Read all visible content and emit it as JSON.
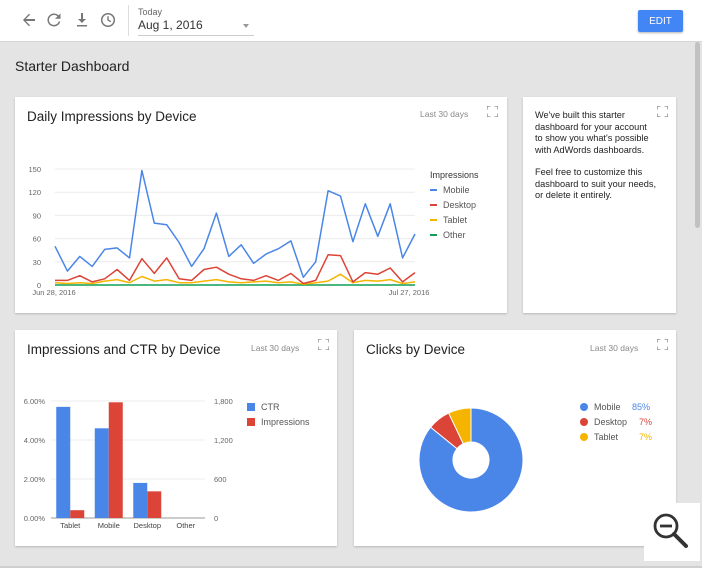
{
  "toolbar": {
    "icons": [
      "back-arrow-icon",
      "refresh-icon",
      "download-icon",
      "history-clock-icon"
    ],
    "date_label": "Today",
    "date_value": "Aug 1, 2016",
    "edit_label": "EDIT"
  },
  "page_title": "Starter Dashboard",
  "colors": {
    "mobile": "#4a86e8",
    "desktop": "#db4437",
    "tablet": "#f4b400",
    "other": "#0f9d58",
    "edit": "#4285f4"
  },
  "cards": {
    "daily": {
      "title": "Daily Impressions by Device",
      "range": "Last 30 days",
      "legend_title": "Impressions",
      "legend": [
        "Mobile",
        "Desktop",
        "Tablet",
        "Other"
      ]
    },
    "welcome": {
      "p1": "We've built this starter dashboard for your account to show you what's possible with AdWords dashboards.",
      "p2": "Feel free to customize this dashboard to suit your needs, or delete it entirely."
    },
    "ctr": {
      "title": "Impressions and CTR by Device",
      "range": "Last 30 days",
      "legend": [
        "CTR",
        "Impressions"
      ]
    },
    "clicks": {
      "title": "Clicks by Device",
      "range": "Last 30 days",
      "legend": [
        {
          "label": "Mobile",
          "pct": "85%"
        },
        {
          "label": "Desktop",
          "pct": "7%"
        },
        {
          "label": "Tablet",
          "pct": "7%"
        }
      ]
    }
  },
  "chart_data": [
    {
      "type": "line",
      "title": "Daily Impressions by Device",
      "ylim": [
        0,
        150
      ],
      "yticks": [
        "0",
        "30",
        "60",
        "90",
        "120",
        "150"
      ],
      "x_tick_labels": [
        "Jun 28, 2016",
        "Jul 27, 2016"
      ],
      "x": [
        "Jun 28",
        "Jun 29",
        "Jun 30",
        "Jul 1",
        "Jul 2",
        "Jul 3",
        "Jul 4",
        "Jul 5",
        "Jul 6",
        "Jul 7",
        "Jul 8",
        "Jul 9",
        "Jul 10",
        "Jul 11",
        "Jul 12",
        "Jul 13",
        "Jul 14",
        "Jul 15",
        "Jul 16",
        "Jul 17",
        "Jul 18",
        "Jul 19",
        "Jul 20",
        "Jul 21",
        "Jul 22",
        "Jul 23",
        "Jul 24",
        "Jul 25",
        "Jul 26",
        "Jul 27"
      ],
      "series": [
        {
          "name": "Mobile",
          "values": [
            50,
            18,
            37,
            24,
            46,
            48,
            35,
            148,
            80,
            78,
            55,
            24,
            47,
            93,
            37,
            52,
            28,
            40,
            47,
            57,
            10,
            30,
            122,
            115,
            56,
            105,
            63,
            105,
            35,
            66
          ]
        },
        {
          "name": "Desktop",
          "values": [
            6,
            6,
            12,
            4,
            8,
            20,
            6,
            34,
            15,
            35,
            8,
            6,
            20,
            23,
            14,
            8,
            6,
            12,
            6,
            15,
            2,
            6,
            39,
            38,
            4,
            16,
            14,
            22,
            4,
            16
          ]
        },
        {
          "name": "Tablet",
          "values": [
            3,
            2,
            3,
            2,
            5,
            7,
            3,
            11,
            5,
            7,
            3,
            3,
            5,
            7,
            4,
            3,
            4,
            5,
            3,
            4,
            1,
            3,
            5,
            14,
            3,
            6,
            5,
            7,
            2,
            4
          ]
        },
        {
          "name": "Other",
          "values": [
            0,
            0,
            0,
            0,
            0,
            0,
            0,
            0,
            0,
            0,
            0,
            0,
            0,
            0,
            0,
            0,
            0,
            0,
            0,
            0,
            0,
            0,
            0,
            0,
            0,
            0,
            0,
            0,
            0,
            0
          ]
        }
      ],
      "grid": true,
      "legend_position": "right"
    },
    {
      "type": "bar",
      "title": "Impressions and CTR by Device",
      "categories": [
        "Tablet",
        "Mobile",
        "Desktop",
        "Other"
      ],
      "series": [
        {
          "name": "CTR",
          "axis": "left",
          "values": [
            5.7,
            4.6,
            1.8,
            0
          ]
        },
        {
          "name": "Impressions",
          "axis": "right",
          "values": [
            120,
            1780,
            410,
            0
          ]
        }
      ],
      "left_axis": {
        "ylim": [
          0,
          6
        ],
        "tick_labels": [
          "0.00%",
          "2.00%",
          "4.00%",
          "6.00%"
        ]
      },
      "right_axis": {
        "ylim": [
          0,
          1800
        ],
        "tick_labels": [
          "0",
          "600",
          "1,200",
          "1,800"
        ]
      },
      "legend_position": "right"
    },
    {
      "type": "pie",
      "title": "Clicks by Device",
      "donut": true,
      "categories": [
        "Mobile",
        "Desktop",
        "Tablet"
      ],
      "values": [
        85,
        7,
        7
      ],
      "labels": [
        "85%",
        "7%",
        "7%"
      ],
      "legend_position": "right"
    }
  ]
}
